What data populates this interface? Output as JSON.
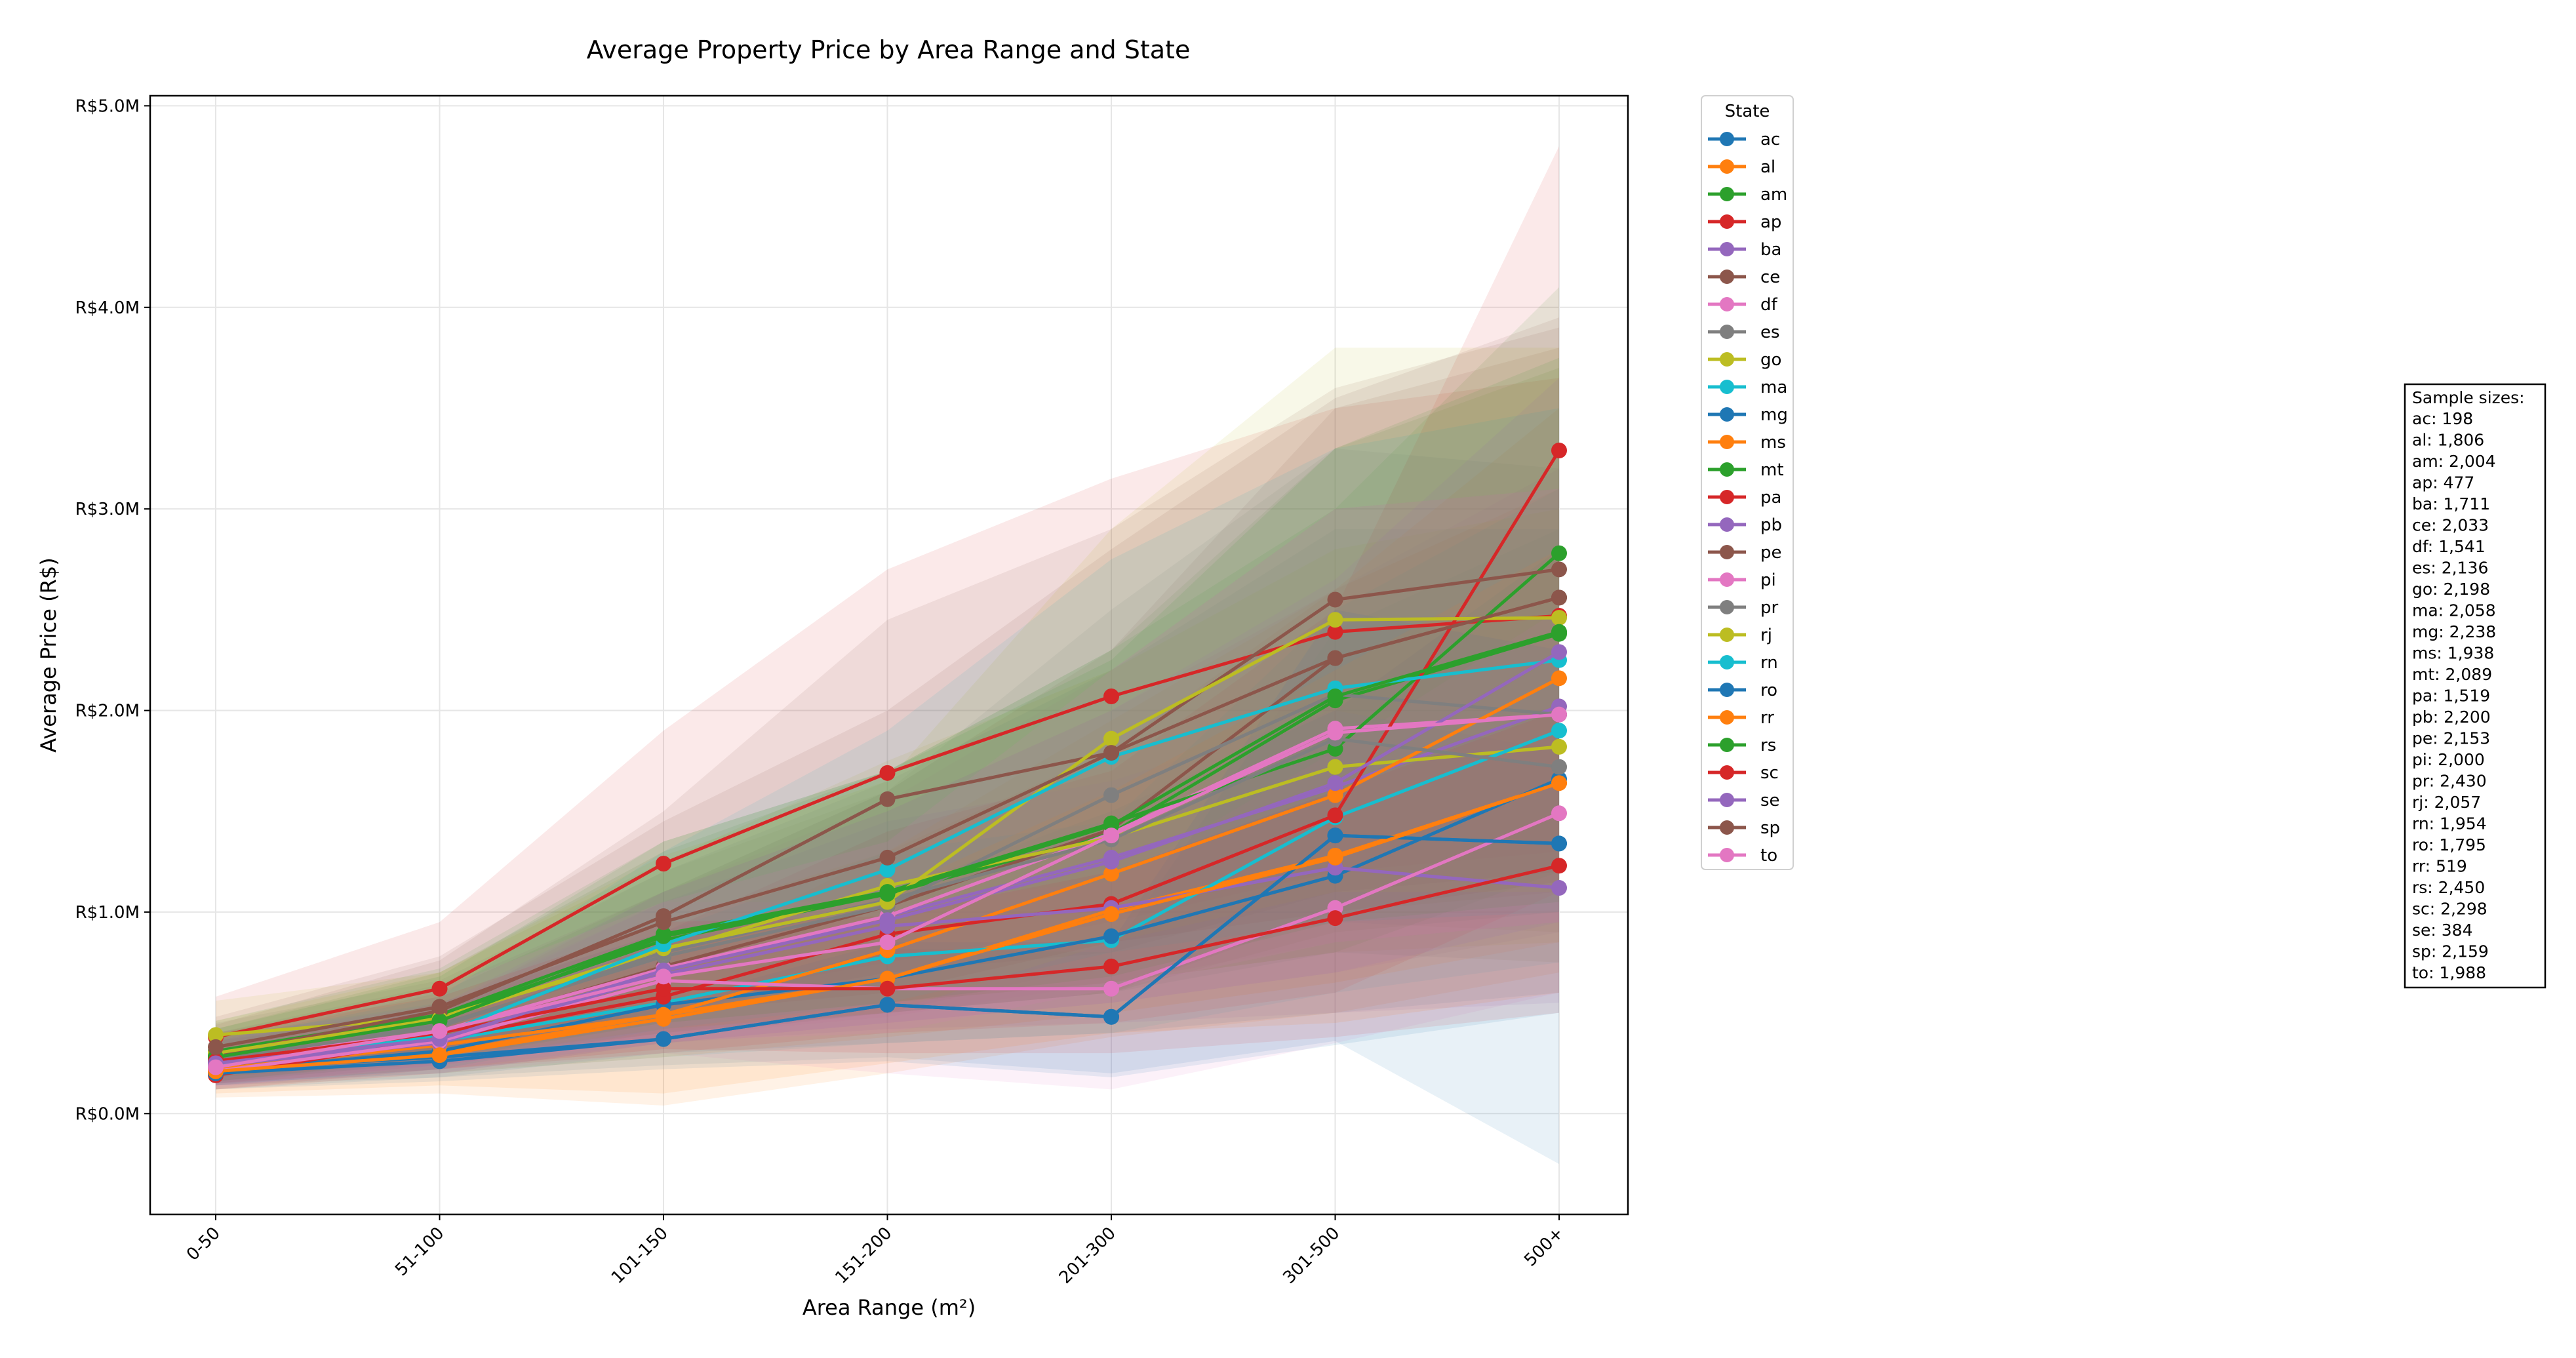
{
  "chart_data": {
    "type": "line",
    "title": "Average Property Price by Area Range and State",
    "xlabel": "Area Range (m²)",
    "ylabel": "Average Price (R$)",
    "categories": [
      "0-50",
      "51-100",
      "101-150",
      "151-200",
      "201-300",
      "301-500",
      "500+"
    ],
    "ylim": [
      -0.5,
      5.05
    ],
    "yticks": [
      0,
      1,
      2,
      3,
      4,
      5
    ],
    "ytick_labels": [
      "R$0.0M",
      "R$1.0M",
      "R$2.0M",
      "R$3.0M",
      "R$4.0M",
      "R$5.0M"
    ],
    "y_unit": "R$ millions",
    "grid": true,
    "legend_title": "State",
    "legend_position": "outside right, top",
    "band_opacity": 0.1,
    "series": [
      {
        "name": "ac",
        "color": "#1f77b4",
        "values": [
          0.22,
          0.28,
          0.37,
          0.54,
          0.48,
          1.38,
          1.34
        ],
        "band": [
          [
            0.14,
            0.32
          ],
          [
            0.18,
            0.4
          ],
          [
            0.24,
            0.52
          ],
          [
            0.28,
            0.82
          ],
          [
            0.2,
            0.8
          ],
          [
            0.36,
            2.4
          ],
          [
            -0.25,
            2.9
          ]
        ]
      },
      {
        "name": "al",
        "color": "#ff7f0e",
        "values": [
          0.21,
          0.3,
          0.49,
          0.67,
          1.01,
          1.28,
          1.64
        ],
        "band": [
          [
            0.08,
            0.36
          ],
          [
            0.1,
            0.5
          ],
          [
            0.04,
            0.95
          ],
          [
            0.2,
            1.3
          ],
          [
            0.38,
            1.8
          ],
          [
            0.5,
            2.6
          ],
          [
            0.7,
            3.1
          ]
        ]
      },
      {
        "name": "am",
        "color": "#2ca02c",
        "values": [
          0.28,
          0.48,
          0.86,
          1.09,
          1.39,
          2.05,
          2.38
        ],
        "band": [
          [
            0.15,
            0.42
          ],
          [
            0.26,
            0.7
          ],
          [
            0.4,
            1.3
          ],
          [
            0.5,
            1.7
          ],
          [
            0.6,
            2.3
          ],
          [
            0.9,
            3.3
          ],
          [
            1.0,
            3.7
          ]
        ]
      },
      {
        "name": "ap",
        "color": "#d62728",
        "values": [
          0.38,
          0.62,
          1.24,
          1.69,
          2.07,
          2.39,
          2.47
        ],
        "band": [
          [
            0.2,
            0.58
          ],
          [
            0.32,
            0.95
          ],
          [
            0.55,
            1.9
          ],
          [
            0.75,
            2.7
          ],
          [
            0.95,
            3.15
          ],
          [
            1.2,
            3.5
          ],
          [
            1.3,
            3.65
          ]
        ]
      },
      {
        "name": "ba",
        "color": "#9467bd",
        "values": [
          0.25,
          0.35,
          0.71,
          0.98,
          1.27,
          1.62,
          2.02
        ],
        "band": [
          [
            0.15,
            0.38
          ],
          [
            0.2,
            0.52
          ],
          [
            0.35,
            1.1
          ],
          [
            0.45,
            1.5
          ],
          [
            0.55,
            2.0
          ],
          [
            0.7,
            2.6
          ],
          [
            0.9,
            3.2
          ]
        ]
      },
      {
        "name": "ce",
        "color": "#8c564b",
        "values": [
          0.23,
          0.4,
          0.73,
          1.03,
          1.41,
          2.26,
          2.56
        ],
        "band": [
          [
            0.14,
            0.36
          ],
          [
            0.24,
            0.6
          ],
          [
            0.38,
            1.1
          ],
          [
            0.5,
            1.6
          ],
          [
            0.6,
            2.3
          ],
          [
            1.0,
            3.5
          ],
          [
            1.1,
            3.8
          ]
        ]
      },
      {
        "name": "df",
        "color": "#e377c2",
        "values": [
          0.26,
          0.41,
          0.72,
          0.98,
          1.39,
          1.91,
          1.98
        ],
        "band": [
          [
            0.15,
            0.4
          ],
          [
            0.24,
            0.62
          ],
          [
            0.38,
            1.1
          ],
          [
            0.48,
            1.55
          ],
          [
            0.65,
            2.2
          ],
          [
            0.85,
            3.0
          ],
          [
            0.95,
            3.1
          ]
        ]
      },
      {
        "name": "es",
        "color": "#7f7f7f",
        "values": [
          0.3,
          0.44,
          0.78,
          1.03,
          1.58,
          2.08,
          1.98
        ],
        "band": [
          [
            0.18,
            0.45
          ],
          [
            0.26,
            0.66
          ],
          [
            0.42,
            1.2
          ],
          [
            0.5,
            1.6
          ],
          [
            0.75,
            2.5
          ],
          [
            0.95,
            3.3
          ],
          [
            0.9,
            3.2
          ]
        ]
      },
      {
        "name": "go",
        "color": "#bcbd22",
        "values": [
          0.39,
          0.48,
          0.8,
          1.13,
          1.37,
          1.72,
          1.82
        ],
        "band": [
          [
            0.22,
            0.56
          ],
          [
            0.28,
            0.7
          ],
          [
            0.4,
            1.25
          ],
          [
            0.55,
            1.75
          ],
          [
            0.65,
            2.2
          ],
          [
            0.8,
            2.8
          ],
          [
            0.85,
            3.0
          ]
        ]
      },
      {
        "name": "ma",
        "color": "#17becf",
        "values": [
          0.25,
          0.36,
          0.55,
          0.78,
          0.86,
          1.47,
          1.9
        ],
        "band": [
          [
            0.15,
            0.38
          ],
          [
            0.2,
            0.55
          ],
          [
            0.28,
            0.9
          ],
          [
            0.35,
            1.3
          ],
          [
            0.4,
            1.45
          ],
          [
            0.6,
            2.5
          ],
          [
            0.75,
            3.1
          ]
        ]
      },
      {
        "name": "mg",
        "color": "#1f77b4",
        "values": [
          0.21,
          0.31,
          0.54,
          0.67,
          0.88,
          1.18,
          1.66
        ],
        "band": [
          [
            0.12,
            0.32
          ],
          [
            0.18,
            0.46
          ],
          [
            0.3,
            0.85
          ],
          [
            0.35,
            1.1
          ],
          [
            0.4,
            1.5
          ],
          [
            0.5,
            2.0
          ],
          [
            0.6,
            2.8
          ]
        ]
      },
      {
        "name": "ms",
        "color": "#ff7f0e",
        "values": [
          0.22,
          0.34,
          0.49,
          0.81,
          1.19,
          1.58,
          2.16
        ],
        "band": [
          [
            0.12,
            0.34
          ],
          [
            0.2,
            0.5
          ],
          [
            0.28,
            0.75
          ],
          [
            0.38,
            1.3
          ],
          [
            0.5,
            1.95
          ],
          [
            0.65,
            2.6
          ],
          [
            0.85,
            3.5
          ]
        ]
      },
      {
        "name": "mt",
        "color": "#2ca02c",
        "values": [
          0.31,
          0.49,
          0.89,
          1.1,
          1.44,
          1.81,
          2.78
        ],
        "band": [
          [
            0.18,
            0.46
          ],
          [
            0.28,
            0.72
          ],
          [
            0.45,
            1.35
          ],
          [
            0.55,
            1.7
          ],
          [
            0.65,
            2.3
          ],
          [
            0.8,
            3.0
          ],
          [
            1.2,
            4.1
          ]
        ]
      },
      {
        "name": "pa",
        "color": "#d62728",
        "values": [
          0.19,
          0.37,
          0.58,
          0.89,
          1.04,
          1.48,
          3.29
        ],
        "band": [
          [
            0.12,
            0.28
          ],
          [
            0.22,
            0.55
          ],
          [
            0.3,
            0.9
          ],
          [
            0.4,
            1.4
          ],
          [
            0.45,
            1.7
          ],
          [
            0.6,
            2.5
          ],
          [
            1.1,
            4.8
          ]
        ]
      },
      {
        "name": "pb",
        "color": "#9467bd",
        "values": [
          0.24,
          0.35,
          0.69,
          0.93,
          1.02,
          1.22,
          1.12
        ],
        "band": [
          [
            0.14,
            0.36
          ],
          [
            0.2,
            0.52
          ],
          [
            0.35,
            1.05
          ],
          [
            0.42,
            1.45
          ],
          [
            0.45,
            1.65
          ],
          [
            0.5,
            2.0
          ],
          [
            0.55,
            1.8
          ]
        ]
      },
      {
        "name": "pe",
        "color": "#8c564b",
        "values": [
          0.29,
          0.51,
          0.98,
          1.56,
          1.79,
          2.55,
          2.7
        ],
        "band": [
          [
            0.16,
            0.44
          ],
          [
            0.28,
            0.76
          ],
          [
            0.5,
            1.5
          ],
          [
            0.7,
            2.45
          ],
          [
            0.8,
            2.9
          ],
          [
            1.1,
            3.6
          ],
          [
            1.2,
            3.9
          ]
        ]
      },
      {
        "name": "pi",
        "color": "#e377c2",
        "values": [
          0.21,
          0.36,
          0.66,
          0.62,
          0.62,
          1.02,
          1.49
        ],
        "band": [
          [
            0.12,
            0.32
          ],
          [
            0.2,
            0.54
          ],
          [
            0.3,
            1.05
          ],
          [
            0.2,
            1.05
          ],
          [
            0.12,
            1.15
          ],
          [
            0.35,
            1.8
          ],
          [
            0.6,
            2.5
          ]
        ]
      },
      {
        "name": "pr",
        "color": "#7f7f7f",
        "values": [
          0.27,
          0.43,
          0.8,
          1.06,
          1.36,
          1.86,
          1.72
        ],
        "band": [
          [
            0.16,
            0.4
          ],
          [
            0.25,
            0.64
          ],
          [
            0.4,
            1.2
          ],
          [
            0.5,
            1.65
          ],
          [
            0.6,
            2.2
          ],
          [
            0.8,
            2.9
          ],
          [
            0.75,
            2.9
          ]
        ]
      },
      {
        "name": "rj",
        "color": "#bcbd22",
        "values": [
          0.3,
          0.47,
          0.82,
          1.05,
          1.86,
          2.45,
          2.46
        ],
        "band": [
          [
            0.18,
            0.46
          ],
          [
            0.27,
            0.7
          ],
          [
            0.42,
            1.28
          ],
          [
            0.5,
            1.65
          ],
          [
            0.85,
            2.9
          ],
          [
            1.1,
            3.8
          ],
          [
            1.1,
            3.8
          ]
        ]
      },
      {
        "name": "rn",
        "color": "#17becf",
        "values": [
          0.24,
          0.39,
          0.84,
          1.21,
          1.77,
          2.11,
          2.25
        ],
        "band": [
          [
            0.14,
            0.36
          ],
          [
            0.22,
            0.58
          ],
          [
            0.42,
            1.3
          ],
          [
            0.55,
            1.9
          ],
          [
            0.8,
            2.75
          ],
          [
            0.95,
            3.3
          ],
          [
            1.0,
            3.5
          ]
        ]
      },
      {
        "name": "ro",
        "color": "#1f77b4",
        "values": [
          0.2,
          0.26,
          0.37,
          0.54,
          0.48,
          1.38,
          1.34
        ],
        "band": [
          [
            0.12,
            0.3
          ],
          [
            0.16,
            0.4
          ],
          [
            0.22,
            0.55
          ],
          [
            0.26,
            0.85
          ],
          [
            0.18,
            0.85
          ],
          [
            0.34,
            2.5
          ],
          [
            0.5,
            2.3
          ]
        ]
      },
      {
        "name": "rr",
        "color": "#ff7f0e",
        "values": [
          0.21,
          0.29,
          0.47,
          0.67,
          0.99,
          1.27,
          1.64
        ],
        "band": [
          [
            0.1,
            0.34
          ],
          [
            0.14,
            0.44
          ],
          [
            0.1,
            0.85
          ],
          [
            0.25,
            1.1
          ],
          [
            0.4,
            1.6
          ],
          [
            0.45,
            2.2
          ],
          [
            0.6,
            2.8
          ]
        ]
      },
      {
        "name": "rs",
        "color": "#2ca02c",
        "values": [
          0.28,
          0.46,
          0.88,
          1.09,
          1.43,
          2.07,
          2.39
        ],
        "band": [
          [
            0.16,
            0.42
          ],
          [
            0.27,
            0.68
          ],
          [
            0.45,
            1.35
          ],
          [
            0.55,
            1.7
          ],
          [
            0.68,
            2.25
          ],
          [
            0.95,
            3.3
          ],
          [
            1.05,
            3.75
          ]
        ]
      },
      {
        "name": "sc",
        "color": "#d62728",
        "values": [
          0.26,
          0.4,
          0.62,
          0.62,
          0.73,
          0.97,
          1.23
        ],
        "band": [
          [
            0.15,
            0.4
          ],
          [
            0.22,
            0.58
          ],
          [
            0.32,
            0.95
          ],
          [
            0.3,
            0.98
          ],
          [
            0.3,
            1.2
          ],
          [
            0.38,
            1.6
          ],
          [
            0.5,
            2.0
          ]
        ]
      },
      {
        "name": "se",
        "color": "#9467bd",
        "values": [
          0.25,
          0.37,
          0.71,
          0.96,
          1.25,
          1.64,
          2.29
        ],
        "band": [
          [
            0.14,
            0.38
          ],
          [
            0.22,
            0.54
          ],
          [
            0.35,
            1.1
          ],
          [
            0.45,
            1.5
          ],
          [
            0.55,
            2.0
          ],
          [
            0.7,
            2.65
          ],
          [
            0.95,
            3.65
          ]
        ]
      },
      {
        "name": "sp",
        "color": "#8c564b",
        "values": [
          0.33,
          0.53,
          0.95,
          1.27,
          1.79,
          2.26,
          2.56
        ],
        "band": [
          [
            0.2,
            0.48
          ],
          [
            0.3,
            0.78
          ],
          [
            0.5,
            1.45
          ],
          [
            0.6,
            2.0
          ],
          [
            0.85,
            2.8
          ],
          [
            1.0,
            3.55
          ],
          [
            1.15,
            3.95
          ]
        ]
      },
      {
        "name": "to",
        "color": "#e377c2",
        "values": [
          0.23,
          0.41,
          0.68,
          0.85,
          1.38,
          1.89,
          1.98
        ],
        "band": [
          [
            0.13,
            0.36
          ],
          [
            0.24,
            0.62
          ],
          [
            0.36,
            1.05
          ],
          [
            0.4,
            1.35
          ],
          [
            0.62,
            2.2
          ],
          [
            0.85,
            3.0
          ],
          [
            0.95,
            3.1
          ]
        ]
      }
    ],
    "sample_sizes_title": "Sample sizes:",
    "sample_sizes": [
      "ac: 198",
      "al: 1,806",
      "am: 2,004",
      "ap: 477",
      "ba: 1,711",
      "ce: 2,033",
      "df: 1,541",
      "es: 2,136",
      "go: 2,198",
      "ma: 2,058",
      "mg: 2,238",
      "ms: 1,938",
      "mt: 2,089",
      "pa: 1,519",
      "pb: 2,200",
      "pe: 2,153",
      "pi: 2,000",
      "pr: 2,430",
      "rj: 2,057",
      "rn: 1,954",
      "ro: 1,795",
      "rr: 519",
      "rs: 2,450",
      "sc: 2,298",
      "se: 384",
      "sp: 2,159",
      "to: 1,988"
    ]
  }
}
